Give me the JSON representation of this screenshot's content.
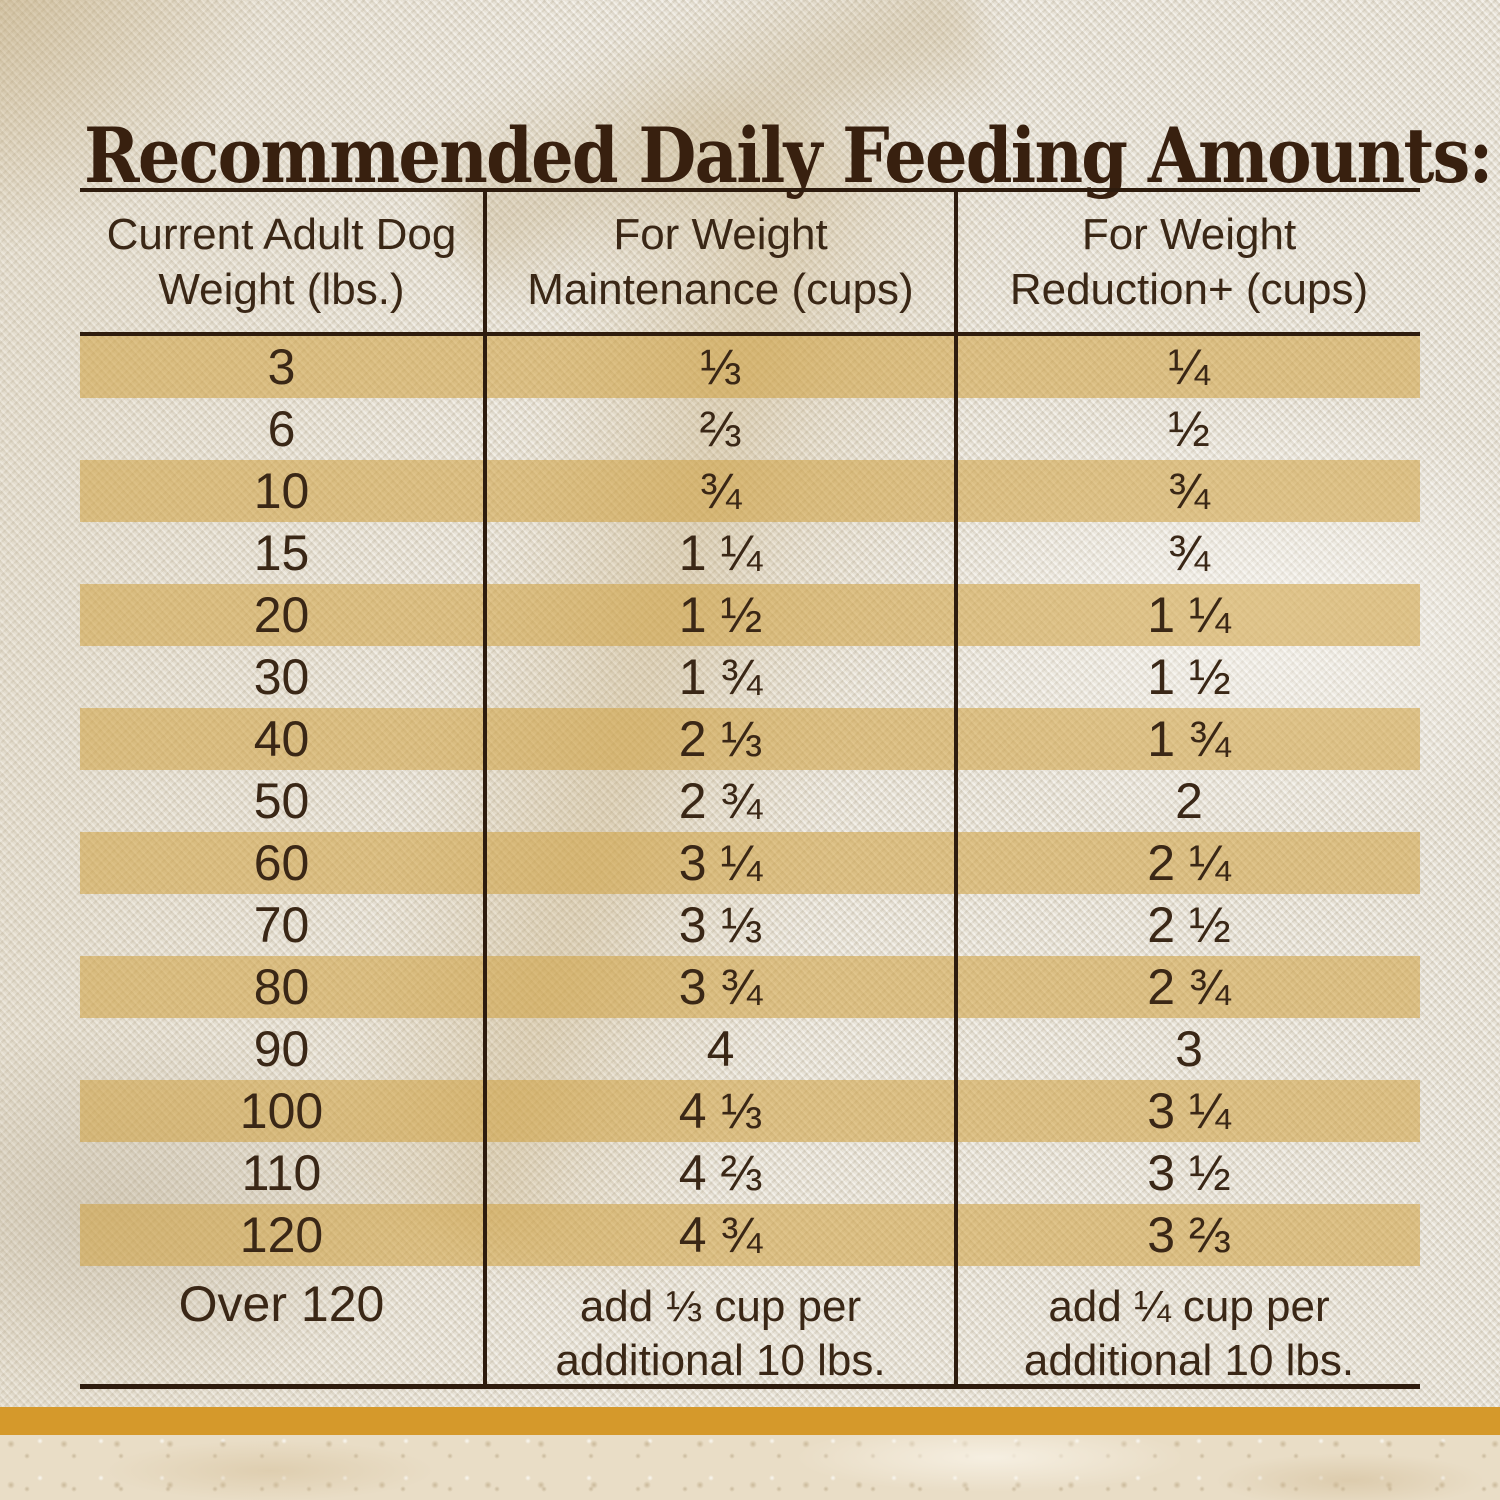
{
  "title": "Recommended Daily Feeding Amounts:",
  "colors": {
    "title": "#38200F",
    "text": "#3A2716",
    "table_line": "#2E1C0E",
    "row_highlight": "rgba(208,160,62,0.55)",
    "accent_bar": "#D5992B"
  },
  "table": {
    "headers": [
      {
        "line1": "Current Adult Dog",
        "line2": "Weight (lbs.)"
      },
      {
        "line1": "For Weight",
        "line2": "Maintenance (cups)"
      },
      {
        "line1": "For Weight",
        "line2": "Reduction+ (cups)"
      }
    ],
    "rows": [
      {
        "weight": "3",
        "maintenance": "⅓",
        "reduction": "¼",
        "highlight": true,
        "note_row": false
      },
      {
        "weight": "6",
        "maintenance": "⅔",
        "reduction": "½",
        "highlight": false,
        "note_row": false
      },
      {
        "weight": "10",
        "maintenance": "¾",
        "reduction": "¾",
        "highlight": true,
        "note_row": false
      },
      {
        "weight": "15",
        "maintenance": "1 ¼",
        "reduction": "¾",
        "highlight": false,
        "note_row": false
      },
      {
        "weight": "20",
        "maintenance": "1 ½",
        "reduction": "1 ¼",
        "highlight": true,
        "note_row": false
      },
      {
        "weight": "30",
        "maintenance": "1 ¾",
        "reduction": "1 ½",
        "highlight": false,
        "note_row": false
      },
      {
        "weight": "40",
        "maintenance": "2 ⅓",
        "reduction": "1 ¾",
        "highlight": true,
        "note_row": false
      },
      {
        "weight": "50",
        "maintenance": "2 ¾",
        "reduction": "2",
        "highlight": false,
        "note_row": false
      },
      {
        "weight": "60",
        "maintenance": "3 ¼",
        "reduction": "2 ¼",
        "highlight": true,
        "note_row": false
      },
      {
        "weight": "70",
        "maintenance": "3 ⅓",
        "reduction": "2 ½",
        "highlight": false,
        "note_row": false
      },
      {
        "weight": "80",
        "maintenance": "3 ¾",
        "reduction": "2 ¾",
        "highlight": true,
        "note_row": false
      },
      {
        "weight": "90",
        "maintenance": "4",
        "reduction": "3",
        "highlight": false,
        "note_row": false
      },
      {
        "weight": "100",
        "maintenance": "4 ⅓",
        "reduction": "3 ¼",
        "highlight": true,
        "note_row": false
      },
      {
        "weight": "110",
        "maintenance": "4 ⅔",
        "reduction": "3 ½",
        "highlight": false,
        "note_row": false
      },
      {
        "weight": "120",
        "maintenance": "4 ¾",
        "reduction": "3 ⅔",
        "highlight": true,
        "note_row": false
      },
      {
        "weight": "Over 120",
        "maintenance": "add ⅓ cup per\nadditional 10 lbs.",
        "reduction": "add ¼ cup per\nadditional 10 lbs.",
        "highlight": false,
        "note_row": true
      }
    ]
  }
}
